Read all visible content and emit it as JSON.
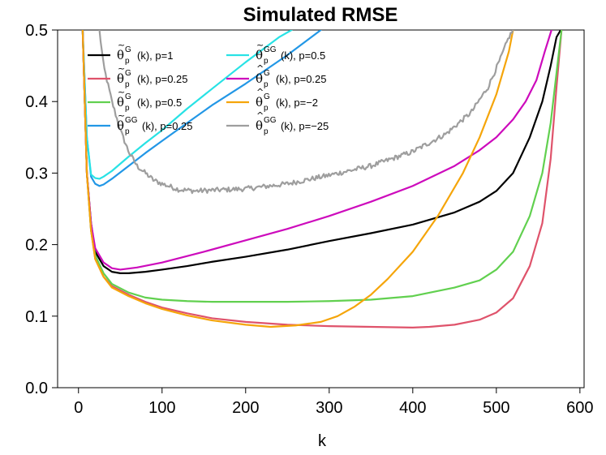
{
  "chart_data": {
    "type": "line",
    "title": "Simulated RMSE",
    "xlabel": "k",
    "ylabel": "",
    "xlim": [
      -25,
      605
    ],
    "ylim": [
      0,
      0.5
    ],
    "xticks": [
      0,
      100,
      200,
      300,
      400,
      500,
      600
    ],
    "yticks": [
      0.0,
      0.1,
      0.2,
      0.3,
      0.4,
      0.5
    ],
    "xtick_labels": [
      "0",
      "100",
      "200",
      "300",
      "400",
      "500",
      "600"
    ],
    "ytick_labels": [
      "0.0",
      "0.1",
      "0.2",
      "0.3",
      "0.4",
      "0.5"
    ],
    "legend_position": "top-left",
    "series": [
      {
        "color": "#000000",
        "symbol": "θ",
        "accent": "~",
        "sup": "G",
        "sub": "p",
        "param": "(k),  p=1",
        "x": [
          5,
          10,
          15,
          20,
          30,
          40,
          50,
          60,
          80,
          100,
          130,
          160,
          200,
          250,
          300,
          350,
          400,
          450,
          480,
          500,
          520,
          540,
          555,
          565,
          572,
          577
        ],
        "y": [
          0.5,
          0.3,
          0.23,
          0.19,
          0.17,
          0.162,
          0.16,
          0.16,
          0.162,
          0.165,
          0.17,
          0.176,
          0.183,
          0.193,
          0.205,
          0.216,
          0.228,
          0.245,
          0.26,
          0.275,
          0.3,
          0.35,
          0.4,
          0.45,
          0.49,
          0.5
        ]
      },
      {
        "color": "#DF536B",
        "symbol": "θ",
        "accent": "~",
        "sup": "G",
        "sub": "p",
        "param": "(k),  p=0.25",
        "x": [
          5,
          10,
          15,
          20,
          30,
          40,
          60,
          80,
          100,
          130,
          160,
          200,
          250,
          300,
          350,
          400,
          420,
          450,
          480,
          500,
          520,
          540,
          555,
          565,
          572,
          578
        ],
        "y": [
          0.5,
          0.3,
          0.22,
          0.18,
          0.155,
          0.142,
          0.13,
          0.12,
          0.112,
          0.104,
          0.097,
          0.092,
          0.088,
          0.086,
          0.085,
          0.084,
          0.085,
          0.088,
          0.095,
          0.105,
          0.125,
          0.17,
          0.23,
          0.32,
          0.42,
          0.5
        ]
      },
      {
        "color": "#61D04F",
        "symbol": "θ",
        "accent": "~",
        "sup": "G",
        "sub": "p",
        "param": "(k),  p=0.5",
        "x": [
          5,
          10,
          15,
          20,
          30,
          40,
          60,
          80,
          100,
          130,
          160,
          200,
          250,
          300,
          350,
          400,
          450,
          480,
          500,
          520,
          540,
          555,
          565,
          572,
          578
        ],
        "y": [
          0.5,
          0.3,
          0.22,
          0.185,
          0.16,
          0.145,
          0.133,
          0.126,
          0.123,
          0.121,
          0.12,
          0.12,
          0.12,
          0.121,
          0.123,
          0.128,
          0.14,
          0.15,
          0.165,
          0.19,
          0.24,
          0.3,
          0.37,
          0.44,
          0.5
        ]
      },
      {
        "color": "#2297E6",
        "symbol": "θ",
        "accent": "~",
        "sup": "GG",
        "sub": "p",
        "param": "(k),  p=0.25",
        "x": [
          5,
          10,
          15,
          20,
          25,
          30,
          40,
          60,
          80,
          100,
          130,
          160,
          200,
          250,
          290
        ],
        "y": [
          0.5,
          0.35,
          0.295,
          0.285,
          0.282,
          0.284,
          0.292,
          0.31,
          0.328,
          0.345,
          0.37,
          0.395,
          0.425,
          0.465,
          0.5
        ]
      },
      {
        "color": "#28E2E5",
        "symbol": "θ",
        "accent": "~",
        "sup": "GG",
        "sub": "p",
        "param": "(k),  p=0.5",
        "x": [
          5,
          10,
          15,
          20,
          25,
          30,
          40,
          60,
          80,
          100,
          130,
          160,
          200,
          240,
          255
        ],
        "y": [
          0.5,
          0.35,
          0.298,
          0.293,
          0.292,
          0.295,
          0.303,
          0.323,
          0.342,
          0.36,
          0.39,
          0.418,
          0.455,
          0.49,
          0.5
        ]
      },
      {
        "color": "#CD0BBC",
        "symbol": "θ",
        "accent": "^",
        "sup": "G",
        "sub": "p",
        "param": "(k),  p=0.25",
        "x": [
          5,
          10,
          15,
          20,
          30,
          40,
          50,
          70,
          100,
          150,
          200,
          250,
          300,
          350,
          400,
          450,
          480,
          500,
          520,
          535,
          548,
          558,
          566
        ],
        "y": [
          0.5,
          0.3,
          0.23,
          0.195,
          0.175,
          0.167,
          0.165,
          0.168,
          0.175,
          0.19,
          0.206,
          0.222,
          0.24,
          0.26,
          0.282,
          0.31,
          0.332,
          0.35,
          0.375,
          0.4,
          0.43,
          0.47,
          0.5
        ]
      },
      {
        "color": "#F5C710",
        "render_color": "#F5A50A",
        "symbol": "θ",
        "accent": "^",
        "sup": "G",
        "sub": "p",
        "param": "(k),  p=−2",
        "x": [
          5,
          10,
          15,
          20,
          30,
          40,
          60,
          80,
          100,
          130,
          160,
          200,
          230,
          260,
          290,
          310,
          330,
          350,
          370,
          400,
          430,
          460,
          480,
          500,
          515,
          520
        ],
        "y": [
          0.5,
          0.3,
          0.22,
          0.18,
          0.155,
          0.14,
          0.128,
          0.118,
          0.11,
          0.101,
          0.094,
          0.088,
          0.085,
          0.087,
          0.092,
          0.1,
          0.113,
          0.13,
          0.152,
          0.19,
          0.24,
          0.3,
          0.35,
          0.41,
          0.47,
          0.5
        ]
      },
      {
        "color": "#9E9E9E",
        "symbol": "θ",
        "accent": "^",
        "sup": "GG",
        "sub": "p",
        "param": "(k),  p=−25",
        "x": [
          25,
          30,
          40,
          50,
          60,
          70,
          80,
          90,
          100,
          120,
          140,
          160,
          200,
          250,
          300,
          350,
          400,
          440,
          470,
          490,
          505,
          515,
          520
        ],
        "y": [
          0.5,
          0.45,
          0.4,
          0.36,
          0.33,
          0.31,
          0.3,
          0.29,
          0.285,
          0.277,
          0.275,
          0.276,
          0.278,
          0.285,
          0.297,
          0.31,
          0.33,
          0.355,
          0.385,
          0.42,
          0.46,
          0.49,
          0.5
        ],
        "noisy": true
      }
    ]
  }
}
